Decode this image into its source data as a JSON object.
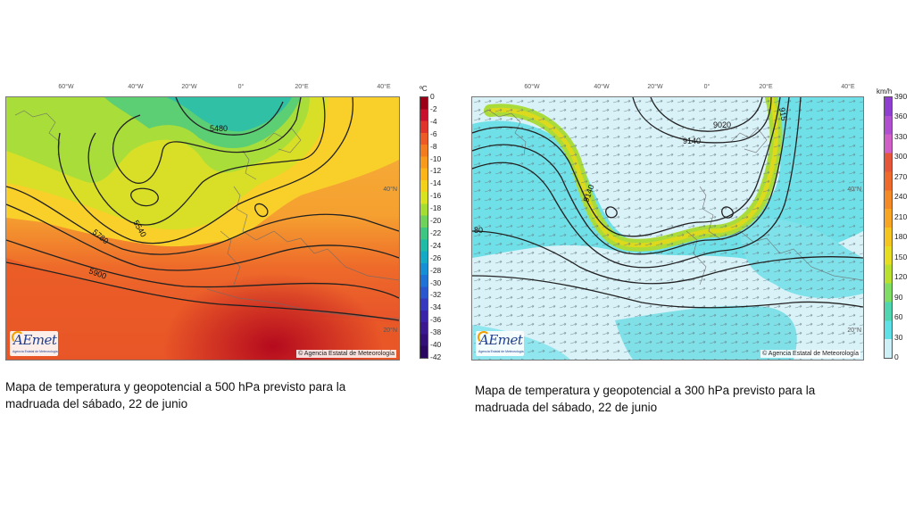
{
  "left_map": {
    "lon_labels": [
      "60°W",
      "40°W",
      "20°W",
      "0°",
      "20°E",
      "40°E"
    ],
    "lat_labels": [
      "40°N",
      "20°N"
    ],
    "contour_labels": [
      "5480",
      "5540",
      "5780",
      "5900"
    ],
    "colorbar": {
      "unit": "ºC",
      "ticks": [
        "0",
        "-2",
        "-4",
        "-6",
        "-8",
        "-10",
        "-12",
        "-14",
        "-16",
        "-18",
        "-20",
        "-22",
        "-24",
        "-26",
        "-28",
        "-30",
        "-32",
        "-34",
        "-36",
        "-38",
        "-40",
        "-42"
      ],
      "colors": [
        "#9b0019",
        "#c8102e",
        "#e0342a",
        "#ed5a26",
        "#f47c20",
        "#f89b1c",
        "#fbb519",
        "#f3d01a",
        "#d9e21e",
        "#a6dd32",
        "#6fd25a",
        "#3ec783",
        "#1fbba7",
        "#14a9c5",
        "#1590d6",
        "#1f73d7",
        "#2a56cf",
        "#3639c0",
        "#3a22a9",
        "#3a1890",
        "#331078",
        "#2a0862"
      ]
    },
    "copyright": "© Agencia Estatal de Meteorología",
    "logo": {
      "text": "AEmet",
      "sub": "Agencia Estatal de Meteorología"
    }
  },
  "right_map": {
    "lon_labels": [
      "60°W",
      "40°W",
      "20°W",
      "0°",
      "20°E",
      "40°E"
    ],
    "lat_labels": [
      "40°N",
      "20°N"
    ],
    "contour_labels": [
      "9020",
      "9140",
      "9140",
      "80",
      "915"
    ],
    "colorbar": {
      "unit": "km/h",
      "ticks": [
        "390",
        "360",
        "330",
        "300",
        "270",
        "240",
        "210",
        "180",
        "150",
        "120",
        "90",
        "60",
        "30",
        "0"
      ],
      "colors": [
        "#8e3fd0",
        "#b04fcf",
        "#d060c8",
        "#e5553a",
        "#ee6a2c",
        "#f38a27",
        "#f7a623",
        "#f5c51f",
        "#e6dd20",
        "#b9e02e",
        "#7fdc64",
        "#4fd6b0",
        "#5fe0e6",
        "#cdeff6"
      ]
    },
    "copyright": "© Agencia Estatal de Meteorología",
    "logo": {
      "text": "AEmet",
      "sub": "Agencia Estatal de Meteorología"
    }
  },
  "captions": {
    "left": "Mapa de temperatura y geopotencial a 500 hPa previsto para la madruada del sábado, 22 de junio",
    "right": "Mapa de temperatura y geopotencial a 300 hPa previsto para la madruada del sábado, 22 de junio"
  }
}
